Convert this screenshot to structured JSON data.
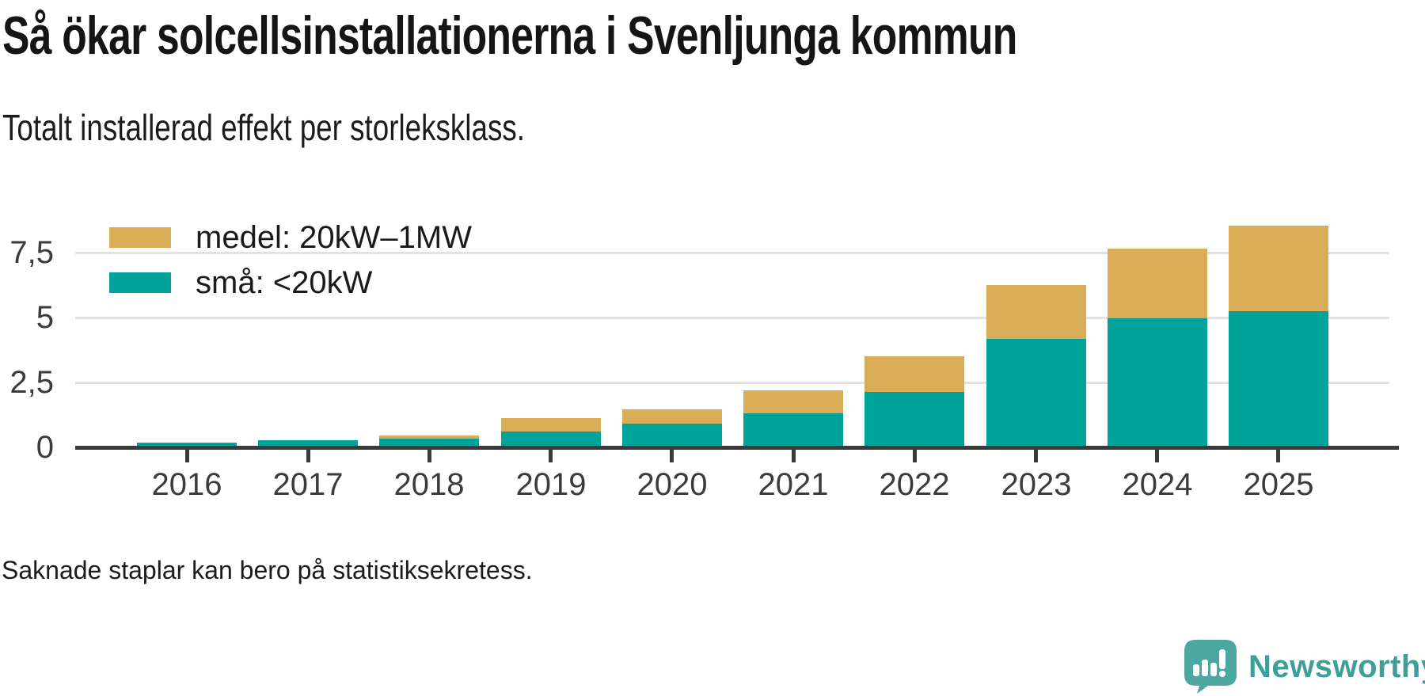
{
  "header": {
    "title": "Så ökar solcellsinstallationerna i Svenljunga kommun",
    "subtitle": "Totalt installerad effekt per storleksklass."
  },
  "chart_data": {
    "type": "bar",
    "stacked": true,
    "categories": [
      "2016",
      "2017",
      "2018",
      "2019",
      "2020",
      "2021",
      "2022",
      "2023",
      "2024",
      "2025"
    ],
    "series": [
      {
        "name": "medel: 20kW–1MW",
        "color": "#d9ac58",
        "values": [
          0,
          0,
          0.13,
          0.51,
          0.54,
          0.87,
          1.38,
          2.06,
          2.67,
          3.3
        ]
      },
      {
        "name": "små: <20kW",
        "color": "#00a39a",
        "values": [
          0.18,
          0.28,
          0.34,
          0.61,
          0.92,
          1.32,
          2.13,
          4.18,
          4.97,
          5.25
        ]
      }
    ],
    "totals": [
      0.18,
      0.28,
      0.47,
      1.12,
      1.46,
      2.19,
      3.51,
      6.24,
      7.64,
      8.55
    ],
    "yticks": [
      {
        "label": "0",
        "value": 0
      },
      {
        "label": "2,5",
        "value": 2.5
      },
      {
        "label": "5",
        "value": 5
      },
      {
        "label": "7,5",
        "value": 7.5
      }
    ],
    "ylim": [
      0,
      8.8
    ],
    "grid": "horizontal",
    "legend_position": "top-left-inside",
    "decimal_separator": ","
  },
  "footer": {
    "note": "Saknade staplar kan bero på statistiksekretess."
  },
  "branding": {
    "logo_text": "Newsworthy",
    "logo_text_color": "#3f9e98",
    "icon_color": "#4ca7a1"
  },
  "colors": {
    "axis": "#3a3a3a",
    "gridline": "#e2e2e2",
    "bar_small": "#00a39a",
    "bar_medium": "#d9ac58",
    "text": "#1b1b1a"
  }
}
